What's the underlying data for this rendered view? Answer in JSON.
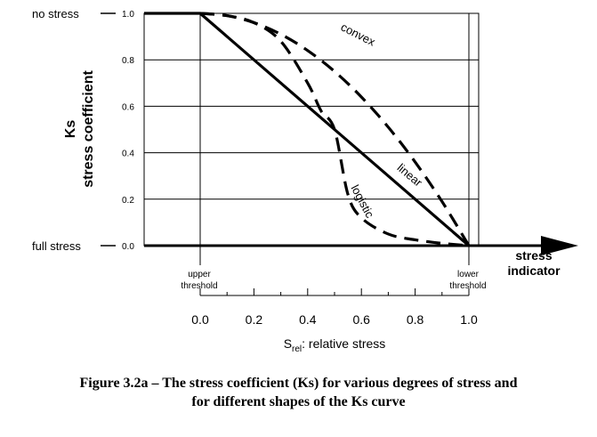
{
  "chart_data": {
    "type": "line",
    "title": "",
    "ylabel_line1": "Ks",
    "ylabel_line2": "stress coefficient",
    "ylim": [
      0,
      1
    ],
    "yticks": [
      "0.0",
      "0.2",
      "0.4",
      "0.6",
      "0.8",
      "1.0"
    ],
    "y_annotations": {
      "top": "no stress",
      "bottom": "full stress"
    },
    "x_arrow_label_line1": "stress",
    "x_arrow_label_line2": "indicator",
    "x_markers": {
      "upper_line1": "upper",
      "upper_line2": "threshold",
      "lower_line1": "lower",
      "lower_line2": "threshold"
    },
    "xscale": {
      "label_main": "S",
      "label_sub": "rel",
      "label_rest": ": relative stress",
      "ticks": [
        "0.0",
        "0.2",
        "0.4",
        "0.6",
        "0.8",
        "1.0"
      ],
      "xlim": [
        0,
        1
      ]
    },
    "grid": true,
    "series": [
      {
        "name": "linear",
        "style": "solid",
        "x": [
          0.0,
          1.0
        ],
        "y": [
          1.0,
          0.0
        ]
      },
      {
        "name": "convex",
        "style": "dashed",
        "x": [
          0.0,
          0.1,
          0.2,
          0.3,
          0.4,
          0.5,
          0.6,
          0.7,
          0.8,
          0.9,
          1.0
        ],
        "y": [
          1.0,
          0.99,
          0.96,
          0.91,
          0.84,
          0.75,
          0.64,
          0.51,
          0.36,
          0.19,
          0.0
        ]
      },
      {
        "name": "logistic",
        "style": "dashed",
        "x": [
          0.0,
          0.1,
          0.2,
          0.3,
          0.4,
          0.45,
          0.5,
          0.55,
          0.6,
          0.7,
          0.8,
          0.9,
          1.0
        ],
        "y": [
          1.0,
          0.99,
          0.96,
          0.88,
          0.7,
          0.58,
          0.5,
          0.22,
          0.12,
          0.05,
          0.025,
          0.01,
          0.0
        ]
      }
    ]
  },
  "caption": {
    "line1": "Figure 3.2a – The stress coefficient (Ks) for various degrees of stress and",
    "line2": "for different shapes of the Ks curve"
  }
}
